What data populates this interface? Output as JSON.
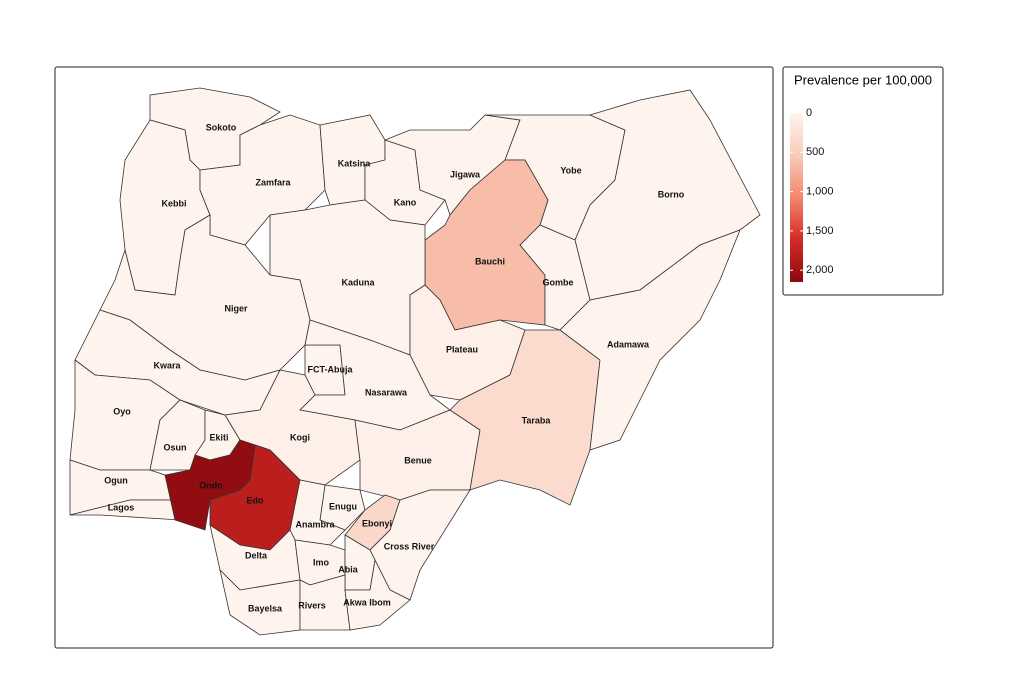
{
  "chart_data": {
    "type": "choropleth",
    "legend_title": "Prevalence per 100,000",
    "lim": [
      0,
      2150
    ],
    "ticks": [
      0,
      500,
      {
        "value": 1000,
        "label": "1,000"
      },
      {
        "value": 1500,
        "label": "1,500"
      },
      {
        "value": 2000,
        "label": "2,000"
      }
    ],
    "colors": [
      "#fff5f0",
      "#f9cbb9",
      "#f3866c",
      "#d42a25",
      "#8a0a0f"
    ],
    "states": [
      {
        "name": "Sokoto",
        "value": 20
      },
      {
        "name": "Kebbi",
        "value": 20
      },
      {
        "name": "Zamfara",
        "value": 20
      },
      {
        "name": "Katsina",
        "value": 20
      },
      {
        "name": "Kano",
        "value": 20
      },
      {
        "name": "Jigawa",
        "value": 20
      },
      {
        "name": "Yobe",
        "value": 20
      },
      {
        "name": "Borno",
        "value": 20
      },
      {
        "name": "Bauchi",
        "value": 650
      },
      {
        "name": "Gombe",
        "value": 30
      },
      {
        "name": "Kaduna",
        "value": 20
      },
      {
        "name": "Niger",
        "value": 20
      },
      {
        "name": "Plateau",
        "value": 80
      },
      {
        "name": "FCT-Abuja",
        "value": 20
      },
      {
        "name": "Nasarawa",
        "value": 30
      },
      {
        "name": "Kwara",
        "value": 20
      },
      {
        "name": "Oyo",
        "value": 20
      },
      {
        "name": "Osun",
        "value": 20
      },
      {
        "name": "Ekiti",
        "value": 30
      },
      {
        "name": "Ogun",
        "value": 20
      },
      {
        "name": "Lagos",
        "value": 20
      },
      {
        "name": "Kogi",
        "value": 80
      },
      {
        "name": "Ondo",
        "value": 2100
      },
      {
        "name": "Edo",
        "value": 1800
      },
      {
        "name": "Benue",
        "value": 80
      },
      {
        "name": "Taraba",
        "value": 330
      },
      {
        "name": "Adamawa",
        "value": 30
      },
      {
        "name": "Enugu",
        "value": 30
      },
      {
        "name": "Anambra",
        "value": 30
      },
      {
        "name": "Ebonyi",
        "value": 380
      },
      {
        "name": "Cross River",
        "value": 30
      },
      {
        "name": "Delta",
        "value": 20
      },
      {
        "name": "Imo",
        "value": 30
      },
      {
        "name": "Abia",
        "value": 30
      },
      {
        "name": "Bayelsa",
        "value": 20
      },
      {
        "name": "Rivers",
        "value": 30
      },
      {
        "name": "Akwa Ibom",
        "value": 30
      }
    ]
  }
}
